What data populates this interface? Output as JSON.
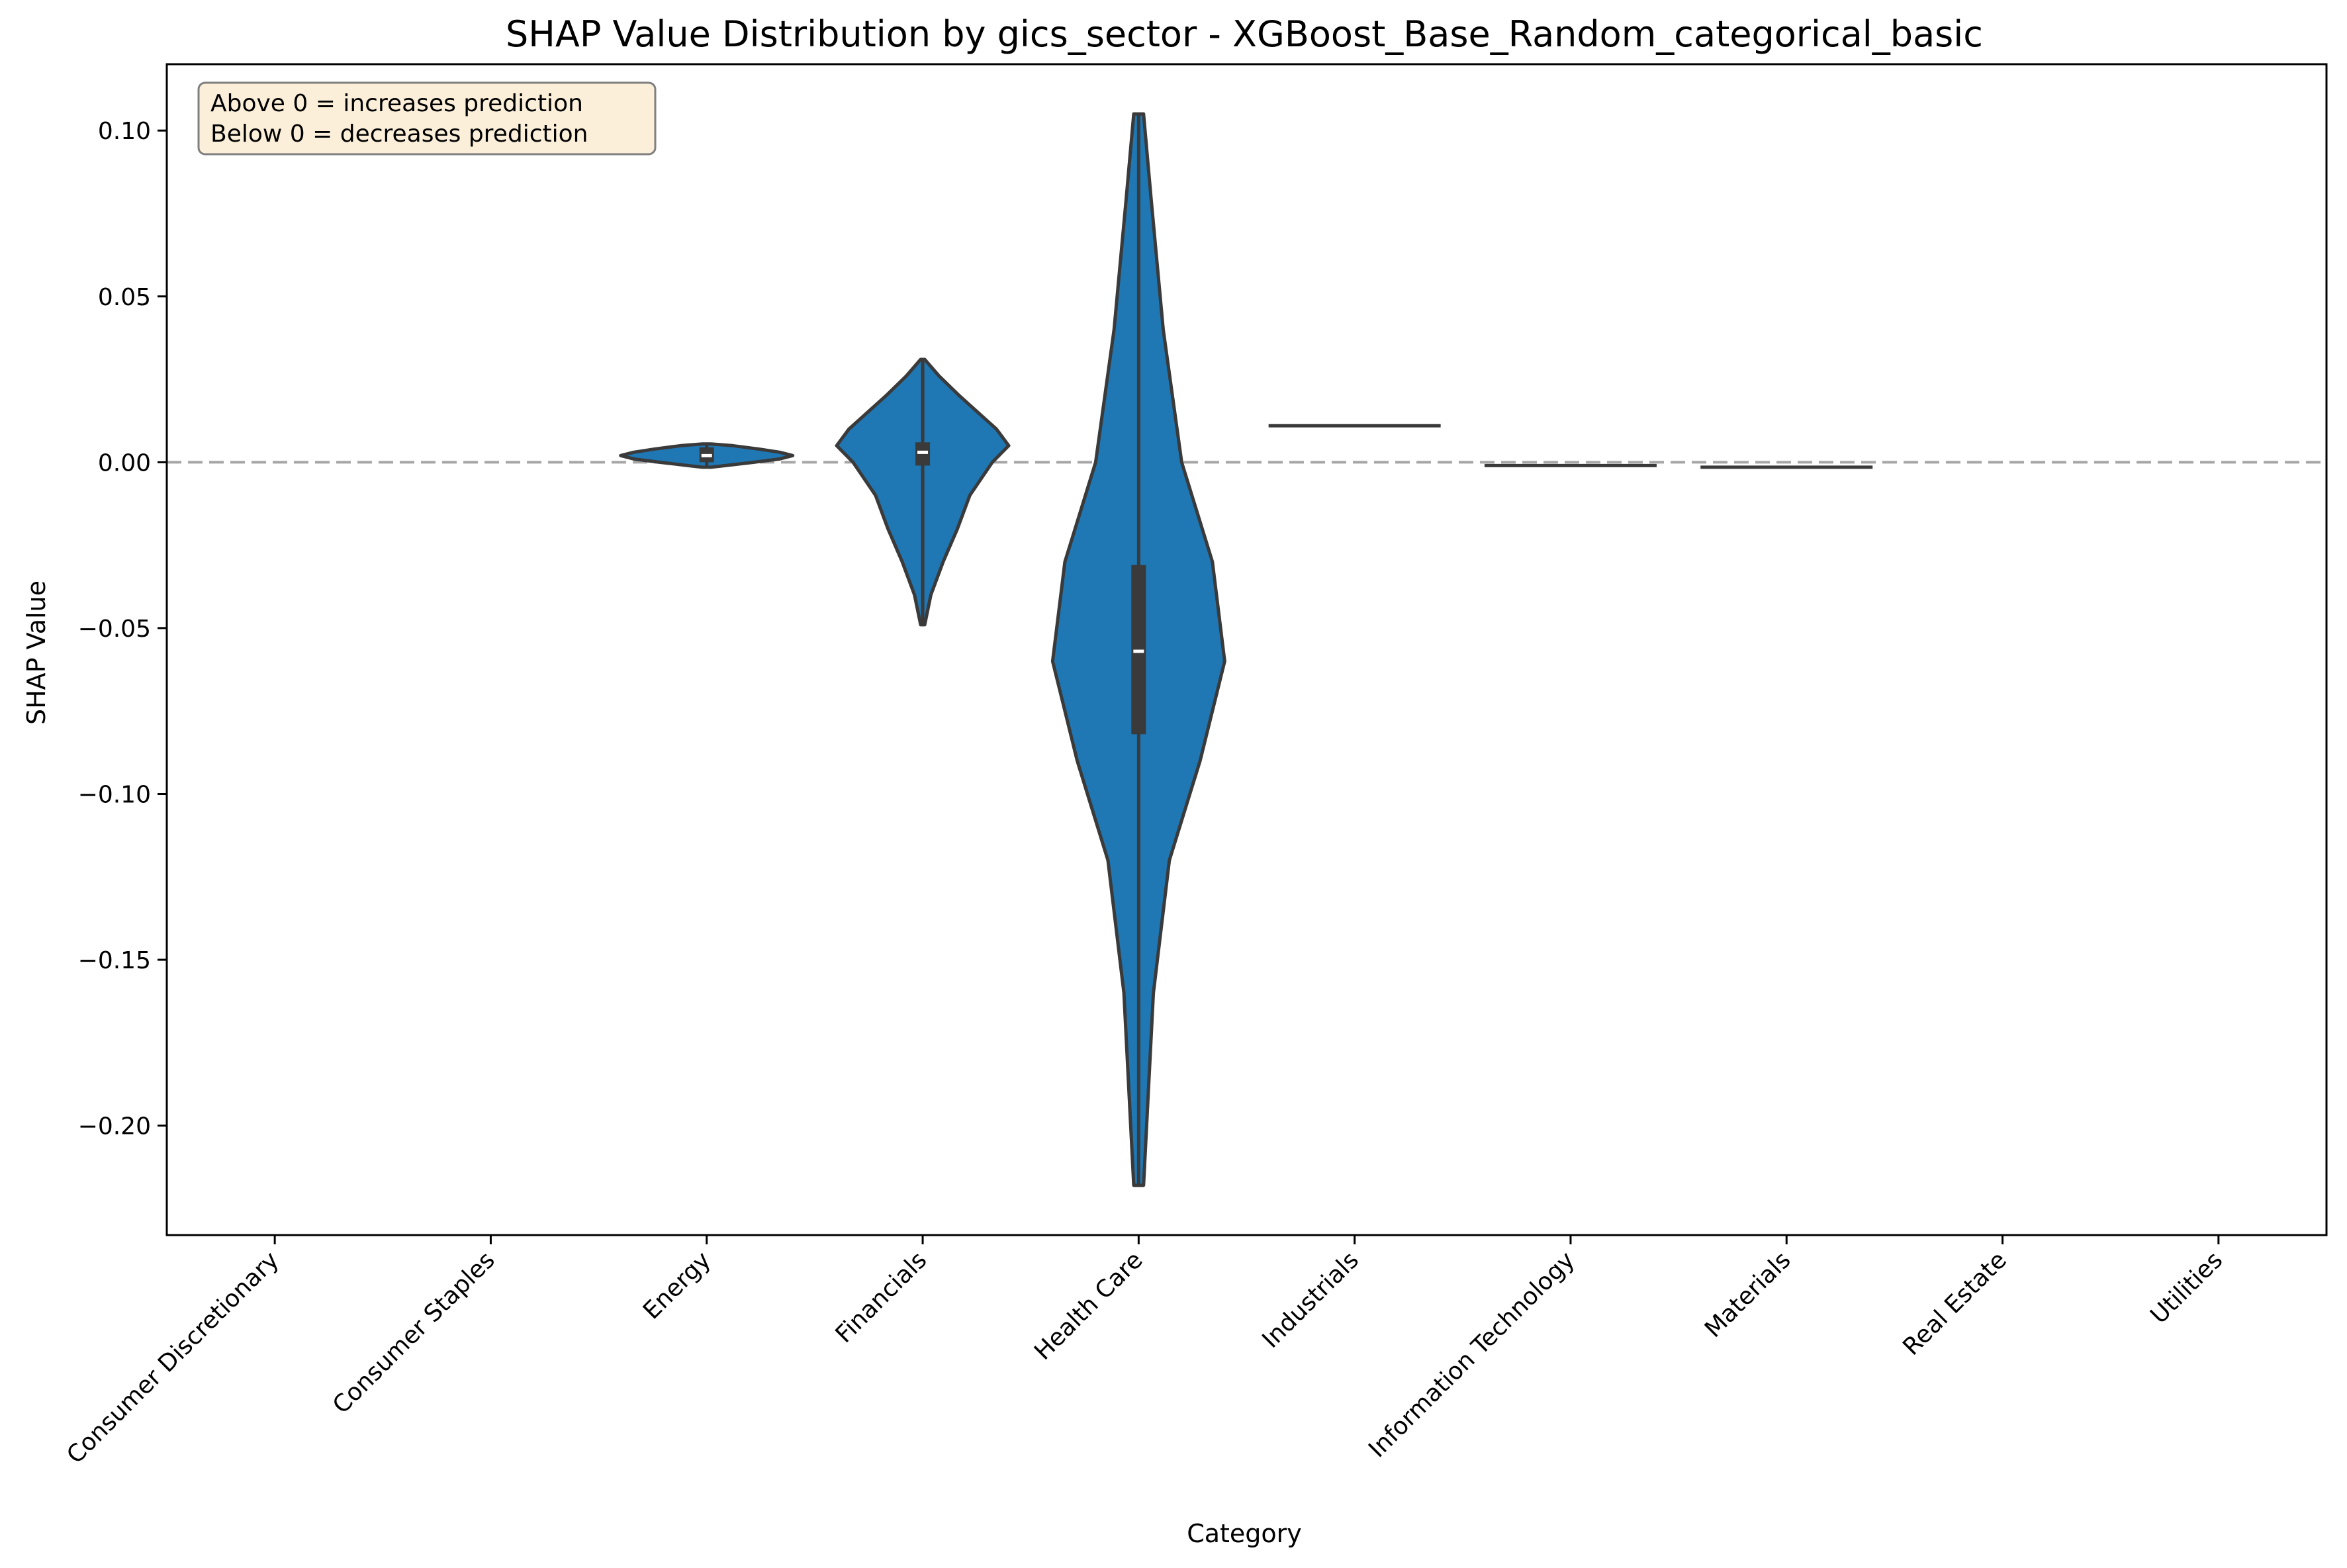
{
  "chart_data": {
    "type": "violin",
    "title": "SHAP Value Distribution by gics_sector - XGBoost_Base_Random_categorical_basic",
    "xlabel": "Category",
    "ylabel": "SHAP Value",
    "categories": [
      "Consumer Discretionary",
      "Consumer Staples",
      "Energy",
      "Financials",
      "Health Care",
      "Industrials",
      "Information Technology",
      "Materials",
      "Real Estate",
      "Utilities"
    ],
    "ylim": [
      -0.233,
      0.12
    ],
    "yticks": [
      0.1,
      0.05,
      0.0,
      -0.05,
      -0.1,
      -0.15,
      -0.2
    ],
    "ytick_labels": [
      "0.10",
      "0.05",
      "0.00",
      "−0.05",
      "−0.10",
      "−0.15",
      "−0.20"
    ],
    "reference_line": {
      "y": 0.0,
      "style": "dashed",
      "color": "#a6a6a6"
    },
    "annotation": {
      "lines": [
        "Above 0 = increases prediction",
        "Below 0 = decreases prediction"
      ],
      "placement": "top-left"
    },
    "grid": false,
    "colors": {
      "violin_fill": "#1f77b4",
      "violin_edge": "#3a3a3a",
      "box": "#3a3a3a",
      "median": "#ffffff",
      "annotation_bg": "#fbefd9",
      "annotation_edge": "#7f7f7f"
    },
    "series": [
      {
        "category": "Consumer Discretionary",
        "kind": "empty"
      },
      {
        "category": "Consumer Staples",
        "kind": "empty"
      },
      {
        "category": "Energy",
        "kind": "violin",
        "min": -0.0015,
        "max": 0.0055,
        "q1": 0.0,
        "median": 0.002,
        "q3": 0.0045,
        "profile": [
          [
            -0.0015,
            0.05
          ],
          [
            -0.001,
            0.22
          ],
          [
            0.0,
            0.55
          ],
          [
            0.001,
            0.85
          ],
          [
            0.002,
            1.0
          ],
          [
            0.003,
            0.85
          ],
          [
            0.004,
            0.6
          ],
          [
            0.005,
            0.3
          ],
          [
            0.0055,
            0.05
          ]
        ]
      },
      {
        "category": "Financials",
        "kind": "violin",
        "min": -0.049,
        "max": 0.031,
        "q1": -0.001,
        "median": 0.003,
        "q3": 0.006,
        "profile": [
          [
            -0.049,
            0.01
          ],
          [
            -0.04,
            0.04
          ],
          [
            -0.03,
            0.1
          ],
          [
            -0.02,
            0.17
          ],
          [
            -0.01,
            0.23
          ],
          [
            0.0,
            0.34
          ],
          [
            0.005,
            0.42
          ],
          [
            0.01,
            0.36
          ],
          [
            0.02,
            0.18
          ],
          [
            0.026,
            0.08
          ],
          [
            0.031,
            0.01
          ]
        ]
      },
      {
        "category": "Health Care",
        "kind": "violin",
        "min": -0.218,
        "max": 0.105,
        "q1": -0.082,
        "median": -0.057,
        "q3": -0.031,
        "profile": [
          [
            -0.218,
            0.004
          ],
          [
            -0.16,
            0.012
          ],
          [
            -0.12,
            0.025
          ],
          [
            -0.09,
            0.05
          ],
          [
            -0.06,
            0.07
          ],
          [
            -0.03,
            0.06
          ],
          [
            0.0,
            0.035
          ],
          [
            0.04,
            0.02
          ],
          [
            0.08,
            0.01
          ],
          [
            0.105,
            0.004
          ]
        ]
      },
      {
        "category": "Industrials",
        "kind": "flat",
        "value": 0.011
      },
      {
        "category": "Information Technology",
        "kind": "flat",
        "value": -0.001
      },
      {
        "category": "Materials",
        "kind": "flat",
        "value": -0.0015
      },
      {
        "category": "Real Estate",
        "kind": "empty"
      },
      {
        "category": "Utilities",
        "kind": "empty"
      }
    ]
  }
}
